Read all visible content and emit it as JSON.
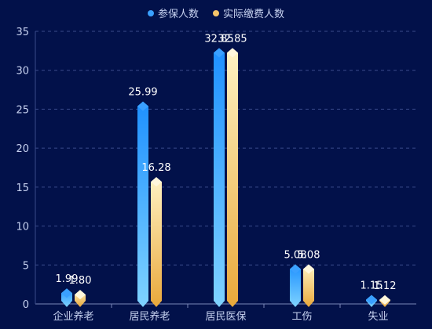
{
  "chart_data": {
    "type": "bar",
    "categories": [
      "企业养老",
      "居民养老",
      "居民医保",
      "工伤",
      "失业"
    ],
    "series": [
      {
        "name": "参保人数",
        "values": [
          1.99,
          25.99,
          32.85,
          5.08,
          1.15
        ]
      },
      {
        "name": "实际缴费人数",
        "values": [
          1.8,
          16.28,
          32.85,
          5.08,
          1.12
        ]
      }
    ],
    "data_labels": [
      [
        "1.99",
        "25.99",
        "32.85",
        "5.08",
        "1.15"
      ],
      [
        "1.80",
        "16.28",
        "32.85",
        "5.08",
        "1.12"
      ]
    ],
    "ylim": [
      0,
      35
    ],
    "yticks": [
      0,
      5,
      10,
      15,
      20,
      25,
      30,
      35
    ],
    "grid": true,
    "legend_position": "top-center",
    "colors": {
      "series1_top": "#1e90ff",
      "series1_bottom": "#7fd3ff",
      "series2_top": "#fff3c4",
      "series2_bottom": "#e9a83a",
      "grid": "#3a4a8a",
      "axis_text": "#c7d2f0",
      "label_text": "#ffffff",
      "background": "#02114a"
    }
  }
}
